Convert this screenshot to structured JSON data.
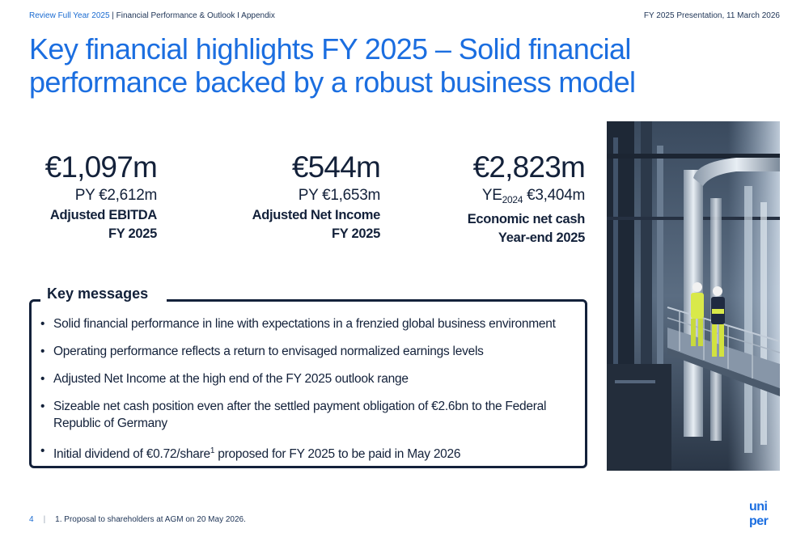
{
  "header": {
    "section_accent": "Review Full Year 2025",
    "section_rest": " | Financial Performance & Outlook I Appendix",
    "presentation": "FY 2025 Presentation, 11 March 2026"
  },
  "title": "Key financial highlights FY 2025 – Solid financial performance backed by a robust business model",
  "kpis": [
    {
      "value": "€1,097m",
      "prior": "PY €2,612m",
      "label1": "Adjusted EBITDA",
      "label2": "FY 2025"
    },
    {
      "value": "€544m",
      "prior": "PY €1,653m",
      "label1": "Adjusted Net Income",
      "label2": "FY 2025"
    },
    {
      "value": "€2,823m",
      "prior_prefix": "YE",
      "prior_sub": "2024",
      "prior_rest": " €3,404m",
      "label1": "Economic net cash",
      "label2": "Year-end 2025"
    }
  ],
  "key_messages": {
    "title": "Key messages",
    "items": [
      "Solid financial performance in line with expectations in a frenzied global business environment",
      "Operating performance reflects a return to envisaged normalized earnings levels",
      "Adjusted Net Income at the high end of the FY 2025 outlook range",
      "Sizeable net cash position even after the settled payment obligation of €2.6bn to the Federal Republic of Germany"
    ],
    "last_item_before": "Initial dividend of €0.72/share",
    "last_item_sup": "1",
    "last_item_after": " proposed for FY 2025 to be paid in May 2026"
  },
  "footer": {
    "page": "4",
    "separator": "|",
    "footnote": "1. Proposal to shareholders at AGM on 20 May 2026."
  },
  "logo": {
    "line1": "uni",
    "line2": "per",
    "color": "#1b6ee0"
  },
  "colors": {
    "accent": "#1b6ee0",
    "text": "#13213a"
  }
}
